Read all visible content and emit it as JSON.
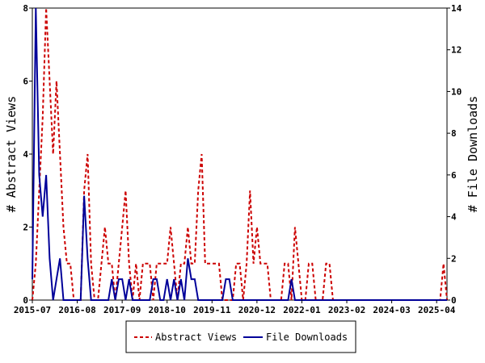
{
  "chart_data": {
    "type": "line",
    "ylabel_left": "# Abstract Views",
    "ylabel_right": "# File Downloads",
    "x_tick_labels": [
      "2015-07",
      "2016-08",
      "2017-09",
      "2018-10",
      "2019-11",
      "2020-12",
      "2022-01",
      "2023-02",
      "2024-03",
      "2025-04"
    ],
    "x_range": [
      "2015-07",
      "2025-07"
    ],
    "ylim_left": [
      0,
      8
    ],
    "ylim_right": [
      0,
      14
    ],
    "yticks_left": [
      0,
      2,
      4,
      6,
      8
    ],
    "yticks_right": [
      0,
      2,
      4,
      6,
      8,
      10,
      12,
      14
    ],
    "grid": false,
    "legend_position": "bottom",
    "series": [
      {
        "name": "Abstract Views",
        "axis": "left",
        "color": "#cc0000",
        "style": "dashed",
        "points": [
          [
            "2015-07",
            0
          ],
          [
            "2015-08",
            1
          ],
          [
            "2015-09",
            3
          ],
          [
            "2015-10",
            5
          ],
          [
            "2015-11",
            8
          ],
          [
            "2015-12",
            6
          ],
          [
            "2016-01",
            4
          ],
          [
            "2016-02",
            6
          ],
          [
            "2016-03",
            4
          ],
          [
            "2016-04",
            2
          ],
          [
            "2016-05",
            1
          ],
          [
            "2016-06",
            1
          ],
          [
            "2016-07",
            0
          ],
          [
            "2016-08",
            0
          ],
          [
            "2016-09",
            0
          ],
          [
            "2016-10",
            3
          ],
          [
            "2016-11",
            4
          ],
          [
            "2016-12",
            1
          ],
          [
            "2017-01",
            0
          ],
          [
            "2017-02",
            0
          ],
          [
            "2017-03",
            1
          ],
          [
            "2017-04",
            2
          ],
          [
            "2017-05",
            1
          ],
          [
            "2017-06",
            1
          ],
          [
            "2017-07",
            0
          ],
          [
            "2017-08",
            1
          ],
          [
            "2017-09",
            2
          ],
          [
            "2017-10",
            3
          ],
          [
            "2017-11",
            1
          ],
          [
            "2017-12",
            0
          ],
          [
            "2018-01",
            1
          ],
          [
            "2018-02",
            0
          ],
          [
            "2018-03",
            1
          ],
          [
            "2018-04",
            1
          ],
          [
            "2018-05",
            1
          ],
          [
            "2018-06",
            0
          ],
          [
            "2018-07",
            1
          ],
          [
            "2018-08",
            1
          ],
          [
            "2018-09",
            1
          ],
          [
            "2018-10",
            1
          ],
          [
            "2018-11",
            2
          ],
          [
            "2018-12",
            1
          ],
          [
            "2019-01",
            0
          ],
          [
            "2019-02",
            1
          ],
          [
            "2019-03",
            1
          ],
          [
            "2019-04",
            2
          ],
          [
            "2019-05",
            1
          ],
          [
            "2019-06",
            1
          ],
          [
            "2019-07",
            3
          ],
          [
            "2019-08",
            4
          ],
          [
            "2019-09",
            1
          ],
          [
            "2019-10",
            1
          ],
          [
            "2019-11",
            1
          ],
          [
            "2019-12",
            1
          ],
          [
            "2020-01",
            1
          ],
          [
            "2020-02",
            0
          ],
          [
            "2020-03",
            0
          ],
          [
            "2020-04",
            0
          ],
          [
            "2020-05",
            0
          ],
          [
            "2020-06",
            1
          ],
          [
            "2020-07",
            1
          ],
          [
            "2020-08",
            0
          ],
          [
            "2020-09",
            1
          ],
          [
            "2020-10",
            3
          ],
          [
            "2020-11",
            1
          ],
          [
            "2020-12",
            2
          ],
          [
            "2021-01",
            1
          ],
          [
            "2021-02",
            1
          ],
          [
            "2021-03",
            1
          ],
          [
            "2021-04",
            0
          ],
          [
            "2021-05",
            0
          ],
          [
            "2021-06",
            0
          ],
          [
            "2021-07",
            0
          ],
          [
            "2021-08",
            1
          ],
          [
            "2021-09",
            1
          ],
          [
            "2021-10",
            0
          ],
          [
            "2021-11",
            2
          ],
          [
            "2021-12",
            1
          ],
          [
            "2022-01",
            0
          ],
          [
            "2022-02",
            0
          ],
          [
            "2022-03",
            1
          ],
          [
            "2022-04",
            1
          ],
          [
            "2022-05",
            0
          ],
          [
            "2022-06",
            0
          ],
          [
            "2022-07",
            0
          ],
          [
            "2022-08",
            1
          ],
          [
            "2022-09",
            1
          ],
          [
            "2022-10",
            0
          ],
          [
            "2022-11",
            0
          ],
          [
            "2022-12",
            0
          ],
          [
            "2023-01",
            0
          ],
          [
            "2023-02",
            0
          ],
          [
            "2023-03",
            0
          ],
          [
            "2023-04",
            0
          ],
          [
            "2023-05",
            0
          ],
          [
            "2023-06",
            0
          ],
          [
            "2023-07",
            0
          ],
          [
            "2023-08",
            0
          ],
          [
            "2023-09",
            0
          ],
          [
            "2023-10",
            0
          ],
          [
            "2023-11",
            0
          ],
          [
            "2023-12",
            0
          ],
          [
            "2024-01",
            0
          ],
          [
            "2024-02",
            0
          ],
          [
            "2024-03",
            0
          ],
          [
            "2024-04",
            0
          ],
          [
            "2024-05",
            0
          ],
          [
            "2024-06",
            0
          ],
          [
            "2024-07",
            0
          ],
          [
            "2024-08",
            0
          ],
          [
            "2024-09",
            0
          ],
          [
            "2024-10",
            0
          ],
          [
            "2024-11",
            0
          ],
          [
            "2024-12",
            0
          ],
          [
            "2025-01",
            0
          ],
          [
            "2025-02",
            0
          ],
          [
            "2025-03",
            0
          ],
          [
            "2025-04",
            0
          ],
          [
            "2025-05",
            0
          ],
          [
            "2025-06",
            1
          ],
          [
            "2025-07",
            0
          ]
        ]
      },
      {
        "name": "File Downloads",
        "axis": "right",
        "color": "#000099",
        "style": "solid",
        "points": [
          [
            "2015-07",
            1
          ],
          [
            "2015-08",
            14
          ],
          [
            "2015-09",
            6
          ],
          [
            "2015-10",
            4
          ],
          [
            "2015-11",
            6
          ],
          [
            "2015-12",
            2
          ],
          [
            "2016-01",
            0
          ],
          [
            "2016-02",
            1
          ],
          [
            "2016-03",
            2
          ],
          [
            "2016-04",
            0
          ],
          [
            "2016-05",
            0
          ],
          [
            "2016-06",
            0
          ],
          [
            "2016-07",
            0
          ],
          [
            "2016-08",
            0
          ],
          [
            "2016-09",
            0
          ],
          [
            "2016-10",
            5
          ],
          [
            "2016-11",
            2
          ],
          [
            "2016-12",
            0
          ],
          [
            "2017-01",
            0
          ],
          [
            "2017-02",
            0
          ],
          [
            "2017-03",
            0
          ],
          [
            "2017-04",
            0
          ],
          [
            "2017-05",
            0
          ],
          [
            "2017-06",
            1
          ],
          [
            "2017-07",
            0
          ],
          [
            "2017-08",
            1
          ],
          [
            "2017-09",
            1
          ],
          [
            "2017-10",
            0
          ],
          [
            "2017-11",
            1
          ],
          [
            "2017-12",
            0
          ],
          [
            "2018-01",
            0
          ],
          [
            "2018-02",
            0
          ],
          [
            "2018-03",
            0
          ],
          [
            "2018-04",
            0
          ],
          [
            "2018-05",
            0
          ],
          [
            "2018-06",
            1
          ],
          [
            "2018-07",
            1
          ],
          [
            "2018-08",
            0
          ],
          [
            "2018-09",
            0
          ],
          [
            "2018-10",
            1
          ],
          [
            "2018-11",
            0
          ],
          [
            "2018-12",
            1
          ],
          [
            "2019-01",
            0
          ],
          [
            "2019-02",
            1
          ],
          [
            "2019-03",
            0
          ],
          [
            "2019-04",
            2
          ],
          [
            "2019-05",
            1
          ],
          [
            "2019-06",
            1
          ],
          [
            "2019-07",
            0
          ],
          [
            "2019-08",
            0
          ],
          [
            "2019-09",
            0
          ],
          [
            "2019-10",
            0
          ],
          [
            "2019-11",
            0
          ],
          [
            "2019-12",
            0
          ],
          [
            "2020-01",
            0
          ],
          [
            "2020-02",
            0
          ],
          [
            "2020-03",
            1
          ],
          [
            "2020-04",
            1
          ],
          [
            "2020-05",
            0
          ],
          [
            "2020-06",
            0
          ],
          [
            "2020-07",
            0
          ],
          [
            "2020-08",
            0
          ],
          [
            "2020-09",
            0
          ],
          [
            "2020-10",
            0
          ],
          [
            "2020-11",
            0
          ],
          [
            "2020-12",
            0
          ],
          [
            "2021-01",
            0
          ],
          [
            "2021-02",
            0
          ],
          [
            "2021-03",
            0
          ],
          [
            "2021-04",
            0
          ],
          [
            "2021-05",
            0
          ],
          [
            "2021-06",
            0
          ],
          [
            "2021-07",
            0
          ],
          [
            "2021-08",
            0
          ],
          [
            "2021-09",
            0
          ],
          [
            "2021-10",
            1
          ],
          [
            "2021-11",
            0
          ],
          [
            "2021-12",
            0
          ],
          [
            "2022-01",
            0
          ],
          [
            "2022-02",
            0
          ],
          [
            "2022-03",
            0
          ],
          [
            "2022-04",
            0
          ],
          [
            "2022-05",
            0
          ],
          [
            "2022-06",
            0
          ],
          [
            "2022-07",
            0
          ],
          [
            "2022-08",
            0
          ],
          [
            "2022-09",
            0
          ],
          [
            "2022-10",
            0
          ],
          [
            "2022-11",
            0
          ],
          [
            "2022-12",
            0
          ],
          [
            "2023-01",
            0
          ],
          [
            "2023-02",
            0
          ],
          [
            "2023-03",
            0
          ],
          [
            "2023-04",
            0
          ],
          [
            "2023-05",
            0
          ],
          [
            "2023-06",
            0
          ],
          [
            "2023-07",
            0
          ],
          [
            "2023-08",
            0
          ],
          [
            "2023-09",
            0
          ],
          [
            "2023-10",
            0
          ],
          [
            "2023-11",
            0
          ],
          [
            "2023-12",
            0
          ],
          [
            "2024-01",
            0
          ],
          [
            "2024-02",
            0
          ],
          [
            "2024-03",
            0
          ],
          [
            "2024-04",
            0
          ],
          [
            "2024-05",
            0
          ],
          [
            "2024-06",
            0
          ],
          [
            "2024-07",
            0
          ],
          [
            "2024-08",
            0
          ],
          [
            "2024-09",
            0
          ],
          [
            "2024-10",
            0
          ],
          [
            "2024-11",
            0
          ],
          [
            "2024-12",
            0
          ],
          [
            "2025-01",
            0
          ],
          [
            "2025-02",
            0
          ],
          [
            "2025-03",
            0
          ],
          [
            "2025-04",
            0
          ],
          [
            "2025-05",
            0
          ],
          [
            "2025-06",
            0
          ],
          [
            "2025-07",
            0
          ]
        ]
      }
    ]
  }
}
